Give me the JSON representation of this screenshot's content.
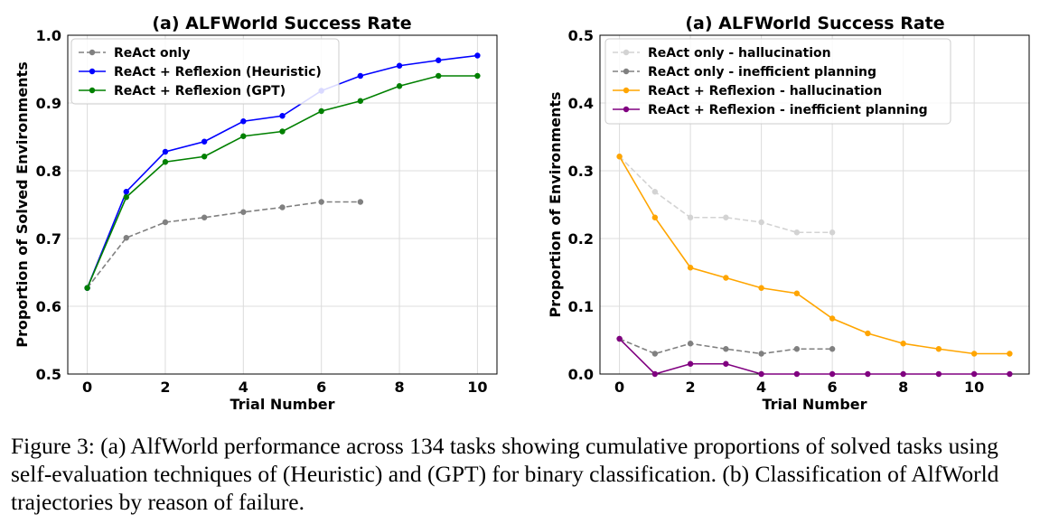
{
  "chart_data": [
    {
      "type": "line",
      "title": "(a) ALFWorld Success Rate",
      "xlabel": "Trial Number",
      "ylabel": "Proportion of Solved Environments",
      "xlim": [
        -0.5,
        10.5
      ],
      "ylim": [
        0.5,
        1.0
      ],
      "xticks": [
        0,
        2,
        4,
        6,
        8,
        10
      ],
      "yticks": [
        0.5,
        0.6,
        0.7,
        0.8,
        0.9,
        1.0
      ],
      "xtick_labels": [
        "0",
        "2",
        "4",
        "6",
        "8",
        "10"
      ],
      "ytick_labels": [
        "0.5",
        "0.6",
        "0.7",
        "0.8",
        "0.9",
        "1.0"
      ],
      "grid": true,
      "legend_position": "top-left",
      "series": [
        {
          "name": "ReAct only",
          "color": "#808080",
          "dashed": true,
          "x": [
            0,
            1,
            2,
            3,
            4,
            5,
            6,
            7
          ],
          "values": [
            0.627,
            0.701,
            0.724,
            0.731,
            0.739,
            0.746,
            0.754,
            0.754
          ]
        },
        {
          "name": "ReAct + Reflexion (Heuristic)",
          "color": "#0000ff",
          "dashed": false,
          "x": [
            0,
            1,
            2,
            3,
            4,
            5,
            6,
            7,
            8,
            9,
            10
          ],
          "values": [
            0.627,
            0.769,
            0.828,
            0.843,
            0.873,
            0.881,
            0.918,
            0.94,
            0.955,
            0.963,
            0.97
          ]
        },
        {
          "name": "ReAct + Reflexion (GPT)",
          "color": "#008000",
          "dashed": false,
          "x": [
            0,
            1,
            2,
            3,
            4,
            5,
            6,
            7,
            8,
            9,
            10
          ],
          "values": [
            0.627,
            0.761,
            0.813,
            0.821,
            0.851,
            0.858,
            0.888,
            0.903,
            0.925,
            0.94,
            0.94
          ]
        }
      ]
    },
    {
      "type": "line",
      "title": "(a) ALFWorld Success Rate",
      "xlabel": "Trial Number",
      "ylabel": "Proportion of Environments",
      "xlim": [
        -0.55,
        11.55
      ],
      "ylim": [
        0.0,
        0.5
      ],
      "xticks": [
        0,
        2,
        4,
        6,
        8,
        10
      ],
      "yticks": [
        0.0,
        0.1,
        0.2,
        0.3,
        0.4,
        0.5
      ],
      "xtick_labels": [
        "0",
        "2",
        "4",
        "6",
        "8",
        "10"
      ],
      "ytick_labels": [
        "0.0",
        "0.1",
        "0.2",
        "0.3",
        "0.4",
        "0.5"
      ],
      "grid": true,
      "legend_position": "top-right",
      "series": [
        {
          "name": "ReAct only - hallucination",
          "color": "#d3d3d3",
          "dashed": true,
          "x": [
            0,
            1,
            2,
            3,
            4,
            5,
            6
          ],
          "values": [
            0.321,
            0.269,
            0.231,
            0.231,
            0.224,
            0.209,
            0.209
          ]
        },
        {
          "name": "ReAct only - inefficient planning",
          "color": "#808080",
          "dashed": true,
          "x": [
            0,
            1,
            2,
            3,
            4,
            5,
            6
          ],
          "values": [
            0.052,
            0.03,
            0.045,
            0.037,
            0.03,
            0.037,
            0.037
          ]
        },
        {
          "name": "ReAct + Reflexion - hallucination",
          "color": "#ffa500",
          "dashed": false,
          "x": [
            0,
            1,
            2,
            3,
            4,
            5,
            6,
            7,
            8,
            9,
            10,
            11
          ],
          "values": [
            0.321,
            0.231,
            0.157,
            0.142,
            0.127,
            0.119,
            0.082,
            0.06,
            0.045,
            0.037,
            0.03,
            0.03
          ]
        },
        {
          "name": "ReAct + Reflexion - inefficient planning",
          "color": "#800080",
          "dashed": false,
          "x": [
            0,
            1,
            2,
            3,
            4,
            5,
            6,
            7,
            8,
            9,
            10,
            11
          ],
          "values": [
            0.052,
            0.0,
            0.015,
            0.015,
            0.0,
            0.0,
            0.0,
            0.0,
            0.0,
            0.0,
            0.0,
            0.0
          ]
        }
      ]
    }
  ],
  "caption": "Figure 3: (a) AlfWorld performance across 134 tasks showing cumulative proportions of solved tasks using self-evaluation techniques of (Heuristic) and (GPT) for binary classification. (b) Classification of AlfWorld trajectories by reason of failure."
}
